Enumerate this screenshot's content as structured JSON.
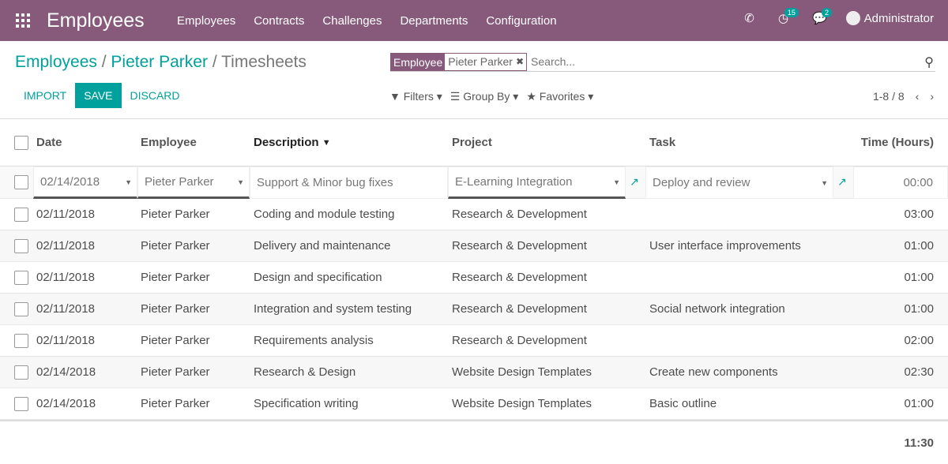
{
  "navbar": {
    "app_title": "Employees",
    "menu": [
      "Employees",
      "Contracts",
      "Challenges",
      "Departments",
      "Configuration"
    ],
    "activity_count": "15",
    "message_count": "2",
    "user": "Administrator",
    "color": "#875a7b"
  },
  "breadcrumb": {
    "items": [
      "Employees",
      "Pieter Parker"
    ],
    "current": "Timesheets",
    "separator": "/"
  },
  "search": {
    "facet_key": "Employee",
    "facet_value": "Pieter Parker",
    "placeholder": "Search..."
  },
  "buttons": {
    "import": "IMPORT",
    "save": "SAVE",
    "discard": "DISCARD"
  },
  "filters": {
    "filters": "Filters",
    "group_by": "Group By",
    "favorites": "Favorites"
  },
  "pager": {
    "range": "1-8 / 8"
  },
  "table": {
    "columns": [
      "Date",
      "Employee",
      "Description",
      "Project",
      "Task",
      "Time (Hours)"
    ],
    "sorted_column": "Description",
    "edit_row": {
      "date": "02/14/2018",
      "employee": "Pieter Parker",
      "description": "Support & Minor bug fixes",
      "project": "E-Learning Integration",
      "task": "Deploy and review",
      "time": "00:00"
    },
    "rows": [
      {
        "date": "02/11/2018",
        "employee": "Pieter Parker",
        "description": "Coding and module testing",
        "project": "Research & Development",
        "task": "",
        "time": "03:00"
      },
      {
        "date": "02/11/2018",
        "employee": "Pieter Parker",
        "description": "Delivery and maintenance",
        "project": "Research & Development",
        "task": "User interface improvements",
        "time": "01:00"
      },
      {
        "date": "02/11/2018",
        "employee": "Pieter Parker",
        "description": "Design and specification",
        "project": "Research & Development",
        "task": "",
        "time": "01:00"
      },
      {
        "date": "02/11/2018",
        "employee": "Pieter Parker",
        "description": "Integration and system testing",
        "project": "Research & Development",
        "task": "Social network integration",
        "time": "01:00"
      },
      {
        "date": "02/11/2018",
        "employee": "Pieter Parker",
        "description": "Requirements analysis",
        "project": "Research & Development",
        "task": "",
        "time": "02:00"
      },
      {
        "date": "02/14/2018",
        "employee": "Pieter Parker",
        "description": "Research & Design",
        "project": "Website Design Templates",
        "task": "Create new components",
        "time": "02:30"
      },
      {
        "date": "02/14/2018",
        "employee": "Pieter Parker",
        "description": "Specification writing",
        "project": "Website Design Templates",
        "task": "Basic outline",
        "time": "01:00"
      }
    ],
    "total": "11:30"
  }
}
